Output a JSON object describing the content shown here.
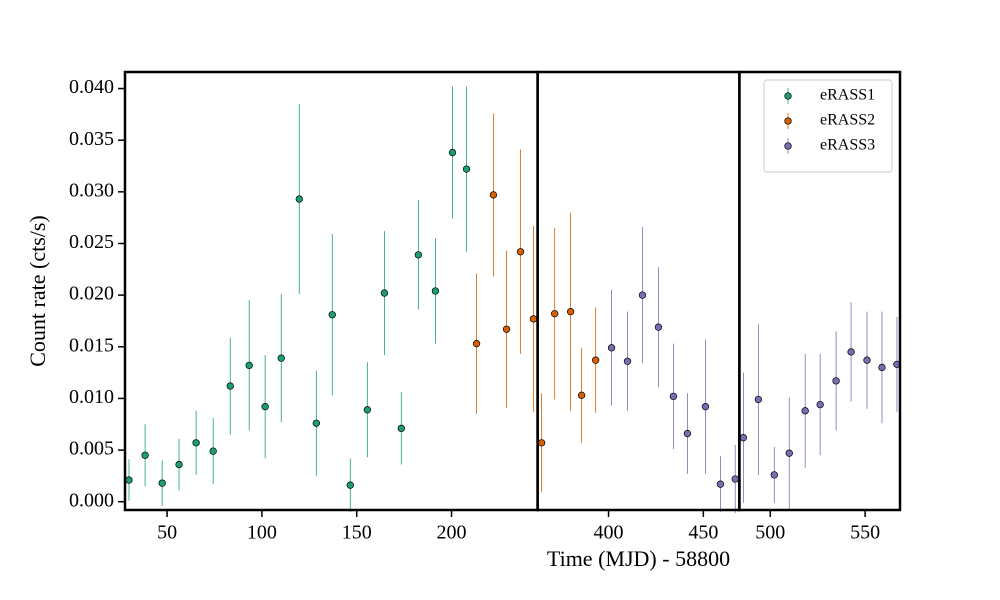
{
  "chart_data": {
    "type": "scatter",
    "x_label": "Time (MJD) - 58800",
    "y_label": "Count rate (cts/s)",
    "ylim": [
      -0.0008,
      0.0416
    ],
    "yticks": [
      {
        "value": 0,
        "label": "0.000"
      },
      {
        "value": 0.005,
        "label": "0.005"
      },
      {
        "value": 0.01,
        "label": "0.010"
      },
      {
        "value": 0.015,
        "label": "0.015"
      },
      {
        "value": 0.02,
        "label": "0.020"
      },
      {
        "value": 0.025,
        "label": "0.025"
      },
      {
        "value": 0.03,
        "label": "0.030"
      },
      {
        "value": 0.035,
        "label": "0.035"
      },
      {
        "value": 0.04,
        "label": "0.040"
      }
    ],
    "panels": [
      {
        "xlim": [
          27.8,
          245.4
        ],
        "xticks": [
          50,
          100,
          150,
          200
        ]
      },
      {
        "xlim": [
          362.6,
          469
        ],
        "xticks": [
          400,
          450
        ]
      },
      {
        "xlim": [
          483.7,
          568.4
        ],
        "xticks": [
          500,
          550
        ]
      }
    ],
    "legend": "upper right",
    "series": [
      {
        "name": "eRASS1",
        "color": "#1b9e77",
        "x": [
          29.9,
          38.4,
          47.4,
          56.3,
          65.3,
          74.3,
          83.3,
          93.3,
          101.7,
          110.2,
          119.7,
          128.7,
          137.1,
          146.6,
          155.6,
          164.6,
          173.5,
          182.5,
          191.5,
          200.5,
          207.9
        ],
        "values": [
          0.0021,
          0.0045,
          0.0018,
          0.0036,
          0.0057,
          0.0049,
          0.0112,
          0.0132,
          0.0092,
          0.0139,
          0.0293,
          0.0076,
          0.0181,
          0.0016,
          0.0089,
          0.0202,
          0.0071,
          0.0239,
          0.0204,
          0.0338,
          0.0322
        ],
        "errors": [
          0.002,
          0.003,
          0.0022,
          0.0025,
          0.0031,
          0.0032,
          0.0047,
          0.0063,
          0.005,
          0.0062,
          0.0092,
          0.0051,
          0.0078,
          0.0026,
          0.0046,
          0.006,
          0.0035,
          0.0053,
          0.0051,
          0.0064,
          0.008
        ]
      },
      {
        "name": "eRASS2",
        "color": "#d95f02",
        "x": [
          213.2,
          222.1,
          229.0,
          236.4,
          243.2,
          364.7,
          371.6,
          380,
          385.8,
          393.2
        ],
        "values": [
          0.0153,
          0.0297,
          0.0167,
          0.0242,
          0.0177,
          0.0057,
          0.0182,
          0.0184,
          0.0103,
          0.0137
        ],
        "errors": [
          0.0068,
          0.0079,
          0.0076,
          0.0099,
          0.009,
          0.0048,
          0.0083,
          0.0096,
          0.0046,
          0.0051
        ]
      },
      {
        "name": "eRASS3",
        "color": "#7570b3",
        "x": [
          401.6,
          410,
          417.9,
          426.3,
          434.2,
          441.6,
          451.1,
          459,
          466.8,
          485.8,
          493.7,
          502.1,
          510,
          518.4,
          526.3,
          534.7,
          542.6,
          551,
          558.9,
          566.8
        ],
        "values": [
          0.0149,
          0.0136,
          0.02,
          0.0169,
          0.0102,
          0.0066,
          0.0092,
          0.0017,
          0.0022,
          0.0062,
          0.0099,
          0.0026,
          0.0047,
          0.0088,
          0.0094,
          0.0117,
          0.0145,
          0.0137,
          0.013,
          0.0133
        ],
        "errors": [
          0.0056,
          0.0048,
          0.0066,
          0.0058,
          0.0051,
          0.0039,
          0.0065,
          0.0027,
          0.0033,
          0.0063,
          0.0073,
          0.0027,
          0.0054,
          0.0055,
          0.0049,
          0.0048,
          0.0048,
          0.0047,
          0.0054,
          0.0046
        ]
      }
    ]
  }
}
